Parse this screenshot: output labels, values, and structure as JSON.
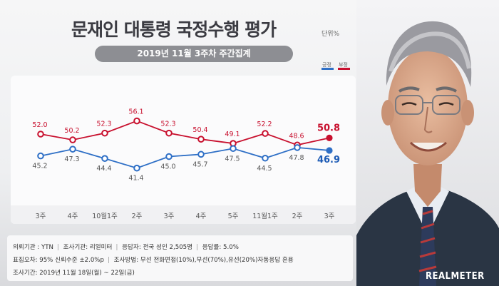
{
  "header": {
    "title": "문재인 대통령 국정수행 평가",
    "unit": "단위%",
    "subtitle": "2019년 11월 3주차 주간집계"
  },
  "legend": {
    "positive": "긍정",
    "negative": "부정"
  },
  "colors": {
    "positive": "#2e6fc6",
    "negative": "#c8102e",
    "accent_blue": "#1d5bb5"
  },
  "chart_data": {
    "type": "line",
    "categories": [
      "3주",
      "4주",
      "10월1주",
      "2주",
      "3주",
      "4주",
      "5주",
      "11월1주",
      "2주",
      "3주"
    ],
    "series": [
      {
        "name": "부정",
        "values": [
          52.0,
          50.2,
          52.3,
          56.1,
          52.3,
          50.4,
          49.1,
          52.2,
          48.6,
          50.8
        ]
      },
      {
        "name": "긍정",
        "values": [
          45.2,
          47.3,
          44.4,
          41.4,
          45.0,
          45.7,
          47.5,
          44.5,
          47.8,
          46.9
        ]
      }
    ],
    "ylim": [
      30,
      70
    ],
    "grid": false
  },
  "footer": {
    "rows": [
      [
        "의뢰기관 : YTN",
        "조사기관: 리얼미터",
        "응답자: 전국 성인 2,505명",
        "응답률: 5.0%"
      ],
      [
        "표집오차: 95% 신뢰수준 ±2.0%p",
        "조사방법: 무선 전화면접(10%),무선(70%),유선(20%)자동응답 혼용"
      ],
      [
        "조사기간: 2019년 11월 18일(월) ~ 22일(금)"
      ]
    ]
  },
  "logo": "REALMETER"
}
